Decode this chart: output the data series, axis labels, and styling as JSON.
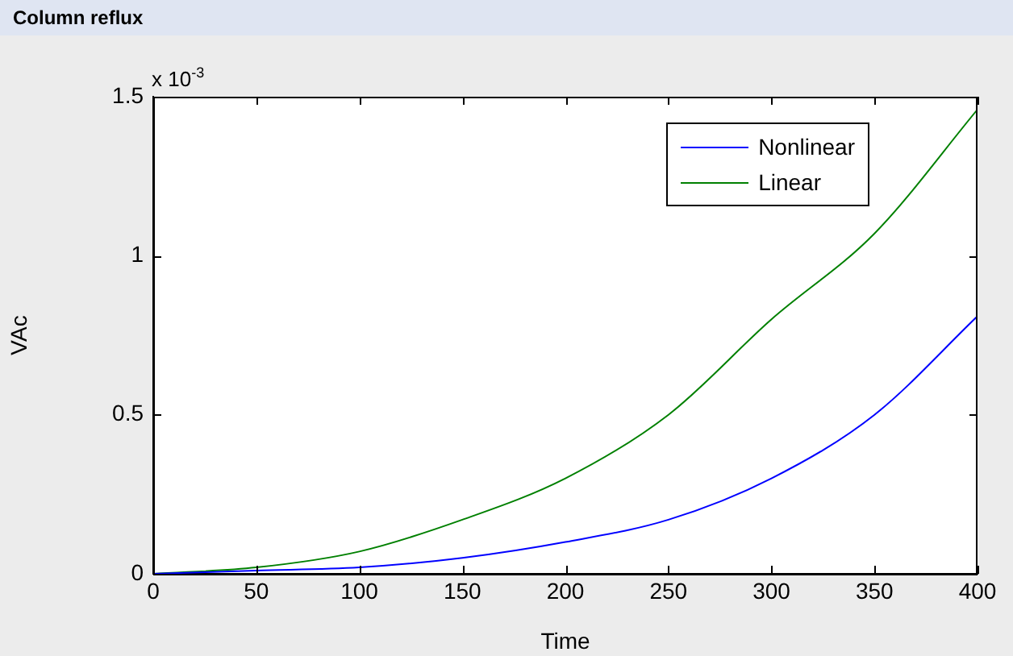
{
  "chart_data": {
    "type": "line",
    "title": "Column reflux",
    "xlabel": "Time",
    "ylabel": "VAc",
    "annotations": [
      "x 10$^{-3}$"
    ],
    "x": [
      0,
      50,
      100,
      150,
      200,
      250,
      300,
      350,
      400
    ],
    "series": [
      {
        "name": "Nonlinear",
        "color": "#0000ff",
        "values": [
          0,
          0.01,
          0.02,
          0.05,
          0.1,
          0.17,
          0.3,
          0.5,
          0.81
        ]
      },
      {
        "name": "Linear",
        "color": "#008000",
        "values": [
          0,
          0.02,
          0.07,
          0.17,
          0.3,
          0.5,
          0.8,
          1.07,
          1.46
        ]
      }
    ],
    "xlim": [
      0,
      400
    ],
    "xticks": [
      0,
      50,
      100,
      150,
      200,
      250,
      300,
      350,
      400
    ],
    "ylim": [
      0,
      1.5
    ],
    "yticks": [
      0,
      0.5,
      1,
      1.5
    ],
    "grid": false,
    "legend": "top right",
    "marker": "none",
    "line_style": "solid"
  }
}
